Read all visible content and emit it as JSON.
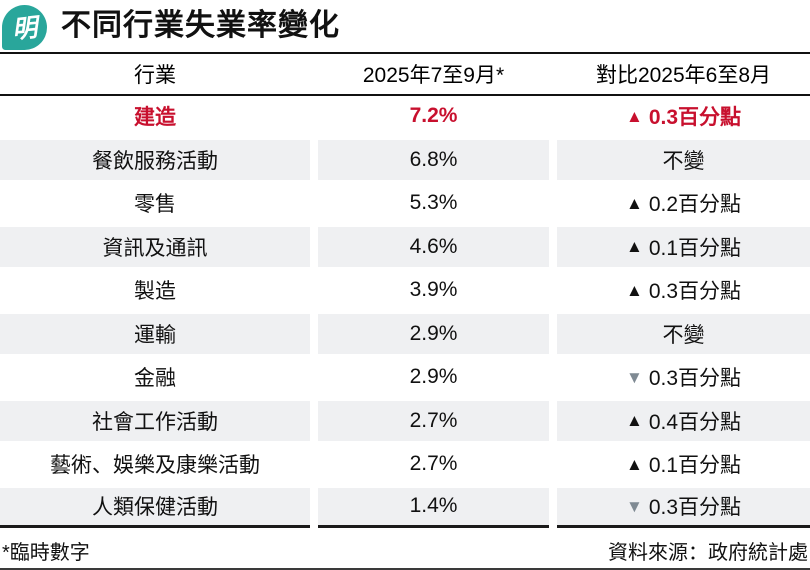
{
  "brand": {
    "logo_char": "明"
  },
  "header": {
    "title": "不同行業失業率變化"
  },
  "table": {
    "columns": [
      "行業",
      "2025年7至9月*",
      "對比2025年6至8月"
    ],
    "icons": {
      "up": "▲",
      "down": "▼"
    },
    "rows": [
      {
        "industry": "建造",
        "rate": "7.2%",
        "direction": "up",
        "change": "0.3百分點",
        "highlight": true
      },
      {
        "industry": "餐飲服務活動",
        "rate": "6.8%",
        "direction": "none",
        "change": "不變",
        "highlight": false
      },
      {
        "industry": "零售",
        "rate": "5.3%",
        "direction": "up",
        "change": "0.2百分點",
        "highlight": false
      },
      {
        "industry": "資訊及通訊",
        "rate": "4.6%",
        "direction": "up",
        "change": "0.1百分點",
        "highlight": false
      },
      {
        "industry": "製造",
        "rate": "3.9%",
        "direction": "up",
        "change": "0.3百分點",
        "highlight": false
      },
      {
        "industry": "運輸",
        "rate": "2.9%",
        "direction": "none",
        "change": "不變",
        "highlight": false
      },
      {
        "industry": "金融",
        "rate": "2.9%",
        "direction": "down",
        "change": "0.3百分點",
        "highlight": false
      },
      {
        "industry": "社會工作活動",
        "rate": "2.7%",
        "direction": "up",
        "change": "0.4百分點",
        "highlight": false
      },
      {
        "industry": "藝術、娛樂及康樂活動",
        "rate": "2.7%",
        "direction": "up",
        "change": "0.1百分點",
        "highlight": false
      },
      {
        "industry": "人類保健活動",
        "rate": "1.4%",
        "direction": "down",
        "change": "0.3百分點",
        "highlight": false
      }
    ]
  },
  "footer": {
    "note": "*臨時數字",
    "source": "資料來源：政府統計處"
  },
  "colors": {
    "brand_teal": "#29a69b",
    "accent_red": "#c8102e",
    "row_alt_bg": "#eff0f2",
    "down_triangle_grey": "#7f8a93",
    "text_black": "#111111"
  },
  "chart_data": {
    "type": "table",
    "title": "不同行業失業率變化",
    "columns": [
      "行業",
      "2025年7至9月*",
      "對比2025年6至8月"
    ],
    "rows": [
      [
        "建造",
        "7.2%",
        "▲0.3百分點"
      ],
      [
        "餐飲服務活動",
        "6.8%",
        "不變"
      ],
      [
        "零售",
        "5.3%",
        "▲0.2百分點"
      ],
      [
        "資訊及通訊",
        "4.6%",
        "▲0.1百分點"
      ],
      [
        "製造",
        "3.9%",
        "▲0.3百分點"
      ],
      [
        "運輸",
        "2.9%",
        "不變"
      ],
      [
        "金融",
        "2.9%",
        "▼0.3百分點"
      ],
      [
        "社會工作活動",
        "2.7%",
        "▲0.4百分點"
      ],
      [
        "藝術、娛樂及康樂活動",
        "2.7%",
        "▲0.1百分點"
      ],
      [
        "人類保健活動",
        "1.4%",
        "▼0.3百分點"
      ]
    ],
    "unemployment_rate_pct": [
      7.2,
      6.8,
      5.3,
      4.6,
      3.9,
      2.9,
      2.9,
      2.7,
      2.7,
      1.4
    ],
    "change_pct_points": [
      0.3,
      0,
      0.2,
      0.1,
      0.3,
      0,
      -0.3,
      0.4,
      0.1,
      -0.3
    ],
    "footnote": "*臨時數字",
    "source": "資料來源：政府統計處"
  }
}
